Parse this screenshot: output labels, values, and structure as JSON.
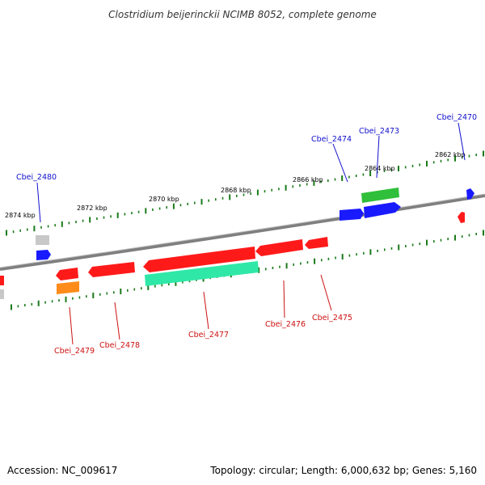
{
  "title": "Clostridium beijerinckii NCIMB 8052, complete genome",
  "footer": {
    "accession": "Accession: NC_009617",
    "topology": "Topology: circular; Length: 6,000,632 bp; Genes: 5,160"
  },
  "colors": {
    "backbone": "#7f7f7f",
    "label_plus": "#1010cc",
    "label_minus": "#cc1010",
    "tick": "#1a7a1a"
  },
  "ticks": [
    {
      "label": "2874 kbp"
    },
    {
      "label": "2872 kbp"
    },
    {
      "label": "2870 kbp"
    },
    {
      "label": "2868 kbp"
    },
    {
      "label": "2866 kbp"
    },
    {
      "label": "2864 kbp"
    },
    {
      "label": "2862 kbp"
    }
  ],
  "genes": [
    {
      "name": "Cbei_2470",
      "strand": "plus",
      "color": "#1a1aff"
    },
    {
      "name": "Cbei_2473",
      "strand": "plus",
      "color": "#1a1aff"
    },
    {
      "name": "Cbei_2474",
      "strand": "plus",
      "color": "#1a1aff"
    },
    {
      "name": "Cbei_2480",
      "strand": "plus",
      "color": "#1a1aff"
    },
    {
      "name": "Cbei_2475",
      "strand": "minus",
      "color": "#ff1a1a"
    },
    {
      "name": "Cbei_2476",
      "strand": "minus",
      "color": "#ff1a1a"
    },
    {
      "name": "Cbei_2477",
      "strand": "minus",
      "color": "#ff1a1a"
    },
    {
      "name": "Cbei_2478",
      "strand": "minus",
      "color": "#ff1a1a"
    },
    {
      "name": "Cbei_2479",
      "strand": "minus",
      "color": "#ff1a1a"
    }
  ]
}
